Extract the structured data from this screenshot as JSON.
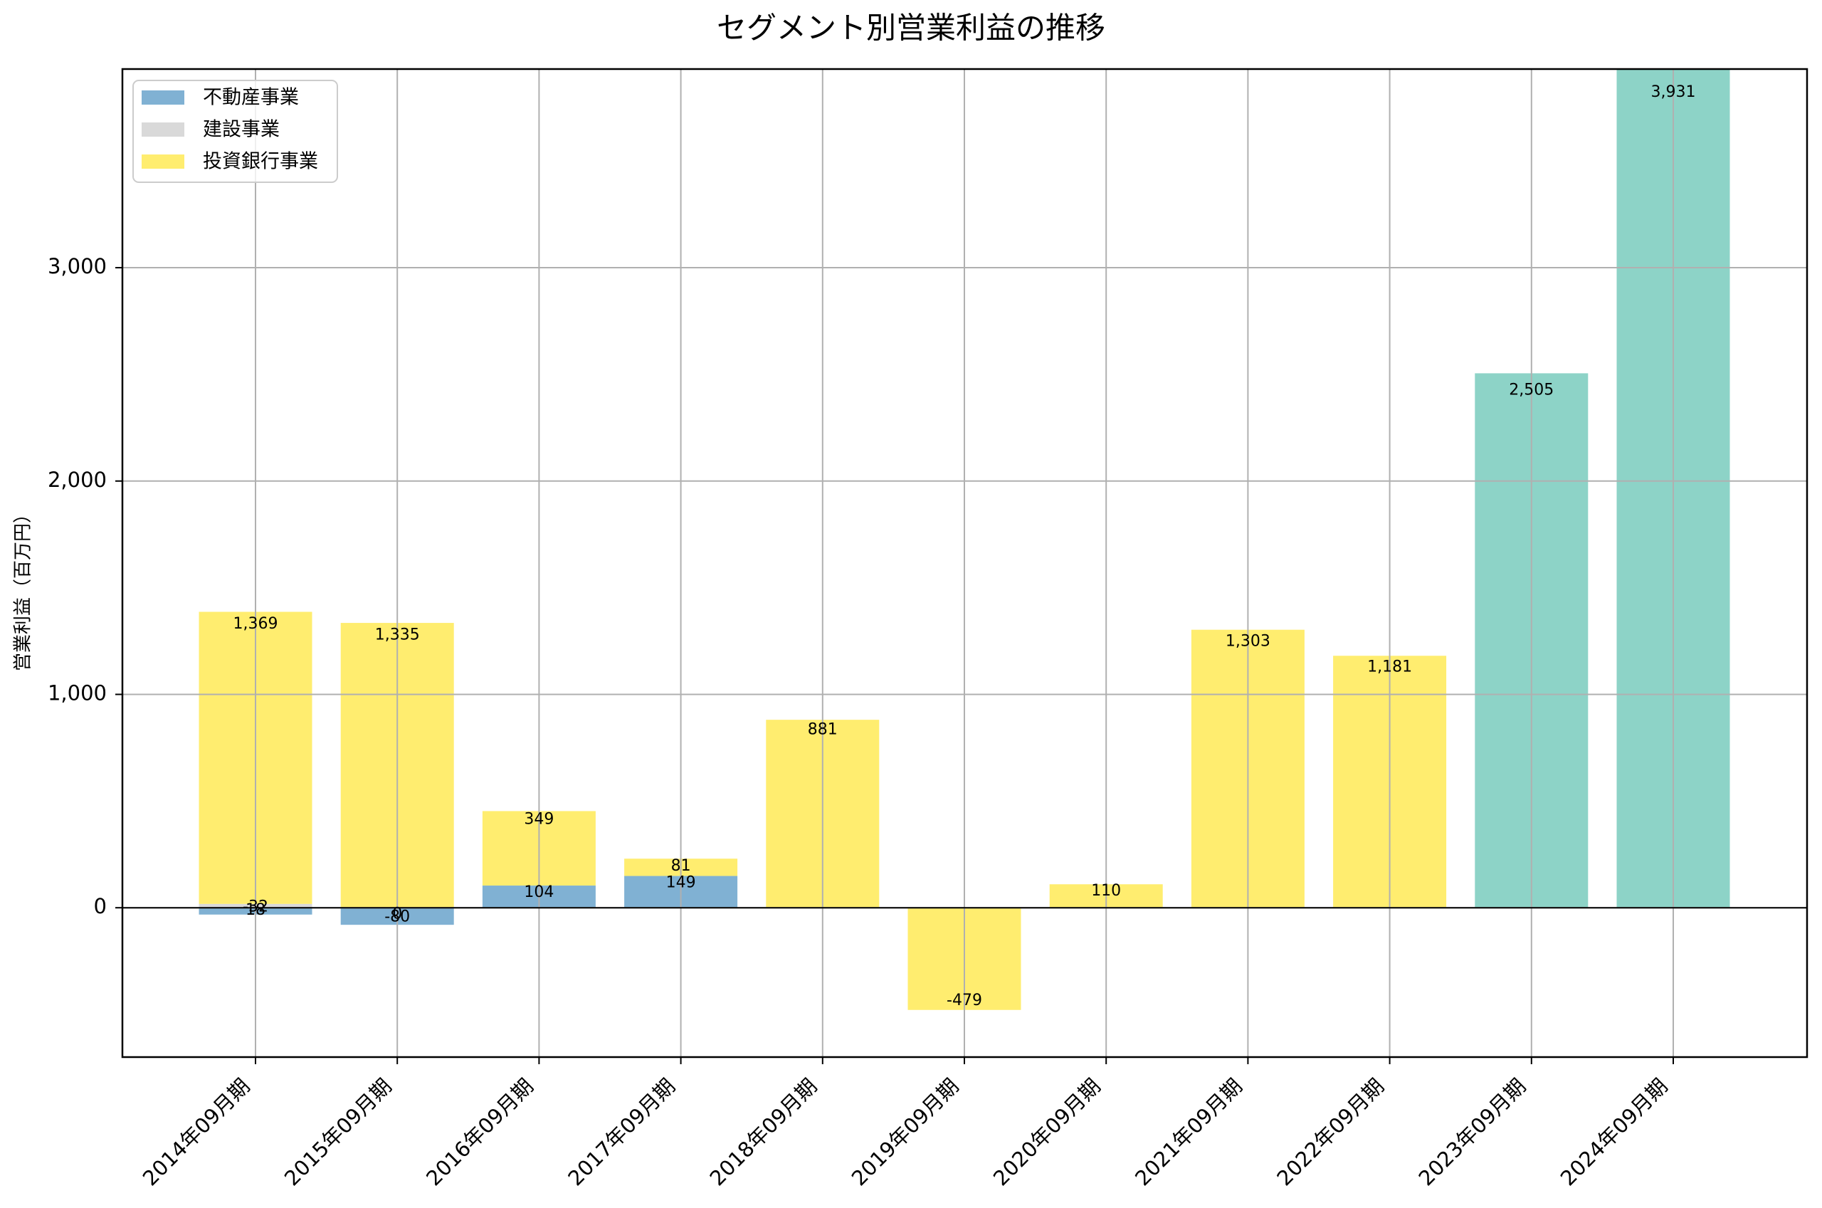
{
  "chart_data": {
    "type": "bar",
    "stacked": true,
    "title": "セグメント別営業利益の推移",
    "xlabel": "",
    "ylabel": "営業利益（百万円）",
    "categories": [
      "2014年09月期",
      "2015年09月期",
      "2016年09月期",
      "2017年09月期",
      "2018年09月期",
      "2019年09月期",
      "2020年09月期",
      "2021年09月期",
      "2022年09月期",
      "2023年09月期",
      "2024年09月期"
    ],
    "series": [
      {
        "name": "不動産事業",
        "color": "#80B1D3",
        "in_legend": true,
        "values": [
          -32,
          -80,
          104,
          149,
          null,
          null,
          null,
          null,
          null,
          null,
          null
        ]
      },
      {
        "name": "建設事業",
        "color": "#D9D9D9",
        "in_legend": true,
        "values": [
          18,
          0,
          null,
          null,
          null,
          null,
          null,
          null,
          null,
          null,
          null
        ]
      },
      {
        "name": "投資銀行事業",
        "color": "#FFED6F",
        "in_legend": true,
        "values": [
          1369,
          1335,
          349,
          81,
          881,
          -479,
          110,
          1303,
          1181,
          null,
          null
        ]
      },
      {
        "name": "",
        "color": "#8DD3C7",
        "in_legend": false,
        "values": [
          null,
          null,
          null,
          null,
          null,
          null,
          null,
          null,
          null,
          2505,
          3931
        ]
      }
    ],
    "ylim": [
      -700,
      3931
    ],
    "yticks": [
      0,
      1000,
      2000,
      3000
    ],
    "ytick_labels": [
      "0",
      "1,000",
      "2,000",
      "3,000"
    ],
    "grid": true,
    "zero_line": true,
    "data_labels": true,
    "legend_position": "upper left",
    "xtick_rotation": 45
  }
}
